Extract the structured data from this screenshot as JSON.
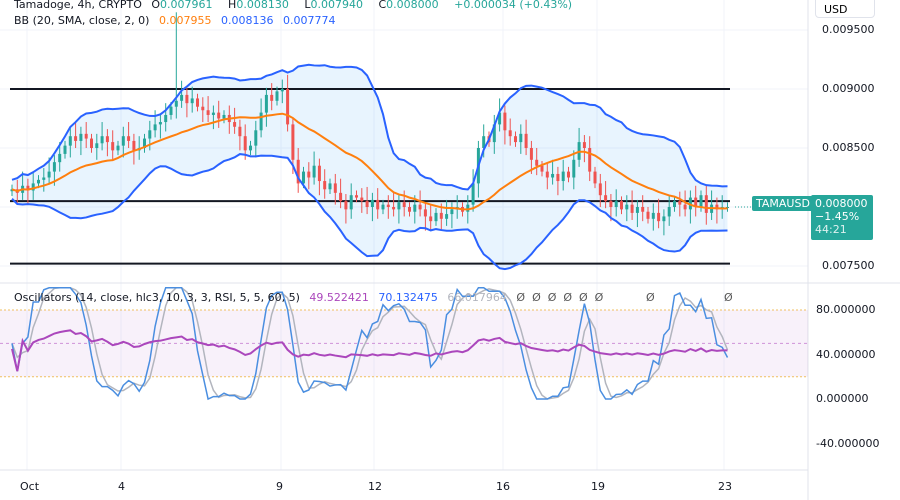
{
  "header": {
    "symbol_line": "Tamadoge, 4h, CRYPTO",
    "o_label": "O",
    "o": "0.007961",
    "h_label": "H",
    "h": "0.008130",
    "l_label": "L",
    "l": "0.007940",
    "c_label": "C",
    "c": "0.008000",
    "change": "+0.000034 (+0.43%)"
  },
  "bb": {
    "label": "BB (20, SMA, close, 2, 0)",
    "basis": "0.007955",
    "upper": "0.008136",
    "lower": "0.007774"
  },
  "osc": {
    "label": "Oscillators (14, close, hlc3, 10, 3, 3, RSI, 5, 5, 60, 5)",
    "v1": "49.522421",
    "v2": "70.132475",
    "v3": "66.017964",
    "zeros": "Ø  Ø  Ø  Ø  Ø  Ø",
    "zero2": "Ø",
    "zero3": "Ø"
  },
  "currency": "USD",
  "last": {
    "symbol": "TAMAUSD",
    "price": "0.008000",
    "change": "−1.45%",
    "countdown": "44:21"
  },
  "colors": {
    "up": "#26a69a",
    "down": "#ef5350",
    "basis": "#ff7f0e",
    "band": "#2962ff",
    "rsi": "#ab47bc",
    "k": "#2962ff",
    "d": "#b2b5be"
  },
  "chart_data": {
    "type": "candlestick",
    "price_ticks": [
      "0.009500",
      "0.009000",
      "0.008500",
      "0.008000",
      "0.007500"
    ],
    "price_tick_values": [
      0.0095,
      0.009,
      0.0085,
      0.008,
      0.0075
    ],
    "osc_ticks": [
      "80.000000",
      "40.000000",
      "0.000000",
      "-40.000000"
    ],
    "osc_tick_values": [
      80,
      40,
      0,
      -40
    ],
    "x_ticks": [
      "Oct",
      "4",
      "9",
      "12",
      "16",
      "19",
      "23"
    ],
    "horizontal_lines": [
      0.009,
      0.00805,
      0.00752
    ],
    "closes": [
      0.00815,
      0.00812,
      0.00818,
      0.00814,
      0.0082,
      0.00823,
      0.00825,
      0.0083,
      0.00838,
      0.00845,
      0.00852,
      0.0086,
      0.00856,
      0.00862,
      0.00858,
      0.0085,
      0.00854,
      0.0086,
      0.00855,
      0.00848,
      0.00852,
      0.0086,
      0.00856,
      0.00848,
      0.0085,
      0.00858,
      0.00865,
      0.0087,
      0.00872,
      0.00878,
      0.00885,
      0.0089,
      0.00895,
      0.00888,
      0.00892,
      0.00885,
      0.00882,
      0.00878,
      0.0088,
      0.00875,
      0.00878,
      0.00872,
      0.00868,
      0.0086,
      0.00848,
      0.00852,
      0.00865,
      0.0088,
      0.00895,
      0.0089,
      0.00898,
      0.009,
      0.0087,
      0.0084,
      0.0082,
      0.0083,
      0.00825,
      0.00835,
      0.00822,
      0.00815,
      0.0082,
      0.00812,
      0.00805,
      0.00798,
      0.0081,
      0.00808,
      0.00805,
      0.008,
      0.00806,
      0.00798,
      0.00802,
      0.008,
      0.00798,
      0.00804,
      0.008,
      0.00796,
      0.00802,
      0.00798,
      0.00792,
      0.00788,
      0.00795,
      0.0079,
      0.00794,
      0.00798,
      0.008,
      0.00796,
      0.00802,
      0.0082,
      0.0085,
      0.0086,
      0.00855,
      0.0087,
      0.0088,
      0.00865,
      0.0086,
      0.00855,
      0.00862,
      0.0085,
      0.0084,
      0.00835,
      0.0083,
      0.00825,
      0.00828,
      0.00822,
      0.0083,
      0.00825,
      0.0084,
      0.00855,
      0.0085,
      0.0083,
      0.0082,
      0.0081,
      0.00805,
      0.008,
      0.00805,
      0.00798,
      0.00802,
      0.00795,
      0.008,
      0.00796,
      0.0079,
      0.00795,
      0.00788,
      0.00792,
      0.008,
      0.00805,
      0.00802,
      0.00798,
      0.00808,
      0.008,
      0.0081,
      0.00795,
      0.00802,
      0.00798,
      0.008,
      0.008
    ],
    "spike_high": 0.00965
  }
}
